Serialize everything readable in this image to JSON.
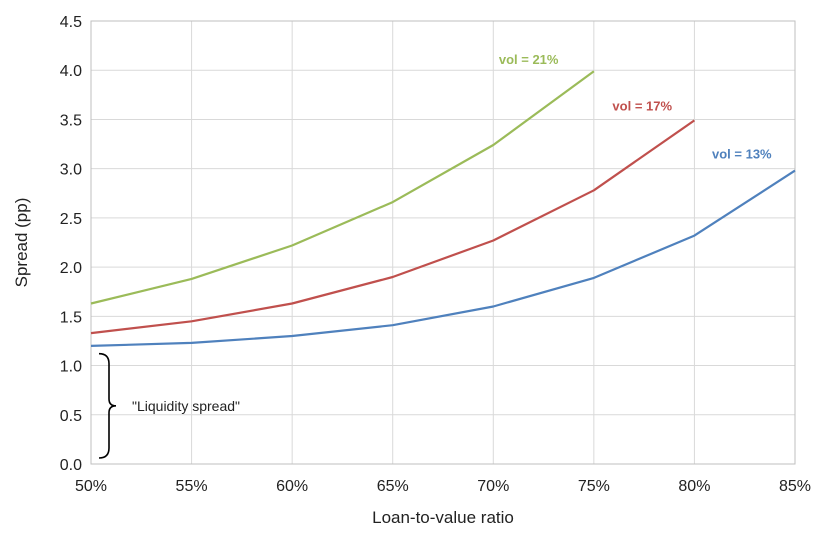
{
  "chart_data": {
    "type": "line",
    "xlabel": "Loan-to-value ratio",
    "ylabel": "Spread (pp)",
    "x": [
      50,
      55,
      60,
      65,
      70,
      75,
      80,
      85
    ],
    "x_tick_labels": [
      "50%",
      "55%",
      "60%",
      "65%",
      "70%",
      "75%",
      "80%",
      "85%"
    ],
    "y_ticks": [
      0.0,
      0.5,
      1.0,
      1.5,
      2.0,
      2.5,
      3.0,
      3.5,
      4.0,
      4.5
    ],
    "y_tick_labels": [
      "0.0",
      "0.5",
      "1.0",
      "1.5",
      "2.0",
      "2.5",
      "3.0",
      "3.5",
      "4.0",
      "4.5"
    ],
    "xlim": [
      50,
      85
    ],
    "ylim": [
      0,
      4.5
    ],
    "grid": true,
    "series": [
      {
        "name": "vol = 21%",
        "color": "#9bbb59",
        "x": [
          50,
          55,
          60,
          65,
          70,
          75
        ],
        "values": [
          1.63,
          1.88,
          2.22,
          2.66,
          3.24,
          3.99
        ]
      },
      {
        "name": "vol = 17%",
        "color": "#c0504d",
        "x": [
          50,
          55,
          60,
          65,
          70,
          75,
          80
        ],
        "values": [
          1.33,
          1.45,
          1.63,
          1.9,
          2.27,
          2.78,
          3.49
        ]
      },
      {
        "name": "vol = 13%",
        "color": "#4f81bd",
        "x": [
          50,
          55,
          60,
          65,
          70,
          75,
          80,
          85
        ],
        "values": [
          1.2,
          1.23,
          1.3,
          1.41,
          1.6,
          1.89,
          2.32,
          2.98
        ]
      }
    ],
    "annotations": [
      {
        "text": "\"Liquidity spread\"",
        "y_range": [
          0,
          1.1
        ]
      }
    ]
  }
}
